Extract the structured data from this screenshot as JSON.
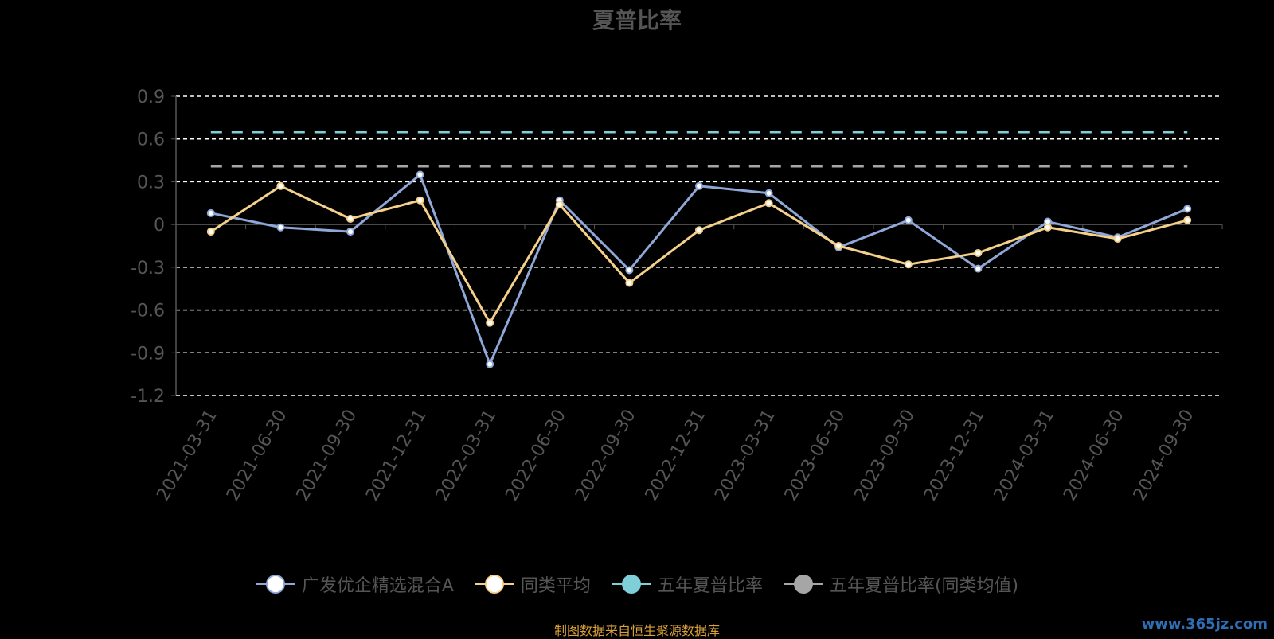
{
  "chart_data": {
    "type": "line",
    "title": "夏普比率",
    "xlabel": "",
    "ylabel": "",
    "ylim": [
      -1.2,
      0.9
    ],
    "yticks": [
      0.9,
      0.6,
      0.3,
      0,
      -0.3,
      -0.6,
      -0.9,
      -1.2
    ],
    "ytick_labels": [
      "0.9",
      "0.6",
      "0.3",
      "0",
      "-0.3",
      "-0.6",
      "-0.9",
      "-1.2"
    ],
    "grid": true,
    "legend_position": "bottom",
    "categories": [
      "2021-03-31",
      "2021-06-30",
      "2021-09-30",
      "2021-12-31",
      "2022-03-31",
      "2022-06-30",
      "2022-09-30",
      "2022-12-31",
      "2023-03-31",
      "2023-06-30",
      "2023-09-30",
      "2023-12-31",
      "2024-03-31",
      "2024-06-30",
      "2024-09-30"
    ],
    "series": [
      {
        "name": "广发优企精选混合A",
        "type": "line",
        "color": "#8fa8d8",
        "values": [
          0.08,
          -0.02,
          -0.05,
          0.35,
          -0.98,
          0.17,
          -0.32,
          0.27,
          0.22,
          -0.16,
          0.03,
          -0.31,
          0.02,
          -0.09,
          0.11
        ]
      },
      {
        "name": "同类平均",
        "type": "line",
        "color": "#f5d08a",
        "values": [
          -0.05,
          0.27,
          0.04,
          0.17,
          -0.69,
          0.14,
          -0.41,
          -0.04,
          0.15,
          -0.15,
          -0.28,
          -0.2,
          -0.02,
          -0.1,
          0.03
        ]
      },
      {
        "name": "五年夏普比率",
        "type": "reference",
        "color": "#7ecfd8",
        "value": 0.65
      },
      {
        "name": "五年夏普比率(同类均值)",
        "type": "reference",
        "color": "#a6a6a6",
        "value": 0.41
      }
    ]
  },
  "footer": {
    "source_note": "制图数据来自恒生聚源数据库",
    "watermark": "www.365jz.com"
  }
}
